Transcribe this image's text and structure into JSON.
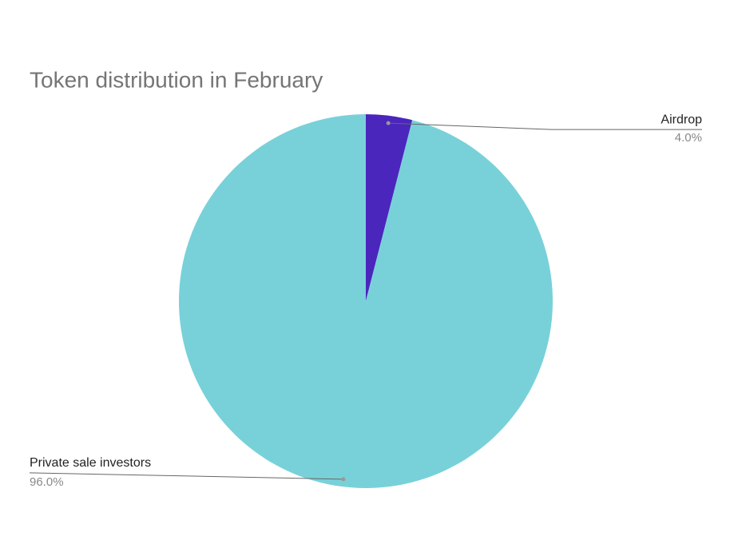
{
  "chart_data": {
    "type": "pie",
    "title": "Token distribution in February",
    "categories": [
      "Airdrop",
      "Private sale investors"
    ],
    "values": [
      4,
      96
    ],
    "value_labels": [
      "4.0%",
      "96.0%"
    ],
    "colors": [
      "#4b26bd",
      "#78d1d9"
    ]
  }
}
